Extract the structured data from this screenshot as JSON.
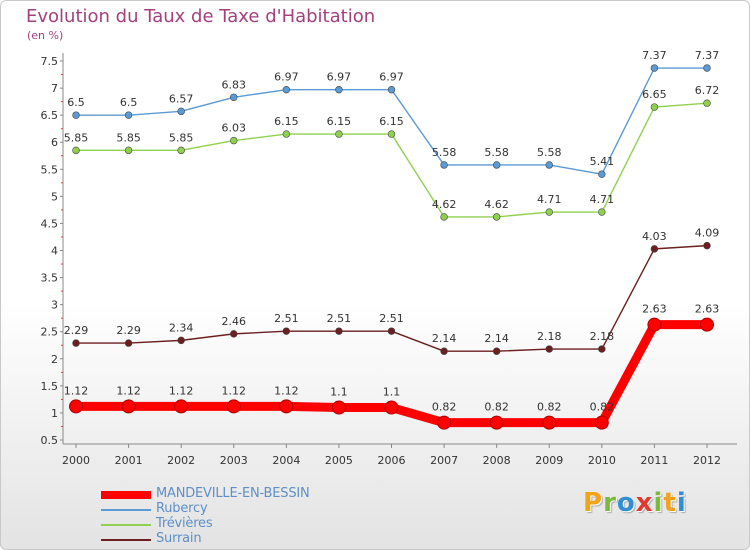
{
  "title": "Evolution du Taux de Taxe d'Habitation",
  "subtitle": "(en %)",
  "brand": {
    "letters": [
      "P",
      "r",
      "o",
      "x",
      "i",
      "t",
      "i"
    ],
    "colors": [
      "#f3a21b",
      "#7cb93f",
      "#2f8fd0",
      "#e03a2f",
      "#7cb93f",
      "#f3a21b",
      "#2f8fd0"
    ]
  },
  "chart_data": {
    "type": "line",
    "x": [
      "2000",
      "2001",
      "2002",
      "2003",
      "2004",
      "2005",
      "2006",
      "2007",
      "2008",
      "2009",
      "2010",
      "2011",
      "2012"
    ],
    "ylim": [
      0.5,
      7.5
    ],
    "yticks": [
      "0.5",
      "1",
      "1.5",
      "2",
      "2.5",
      "3",
      "3.5",
      "4",
      "4.5",
      "5",
      "5.5",
      "6",
      "6.5",
      "7",
      "7.5"
    ],
    "grid": false,
    "legend_position": "bottom-left",
    "series": [
      {
        "name": "MANDEVILLE-EN-BESSIN",
        "color": "#ff0000",
        "values": [
          1.12,
          1.12,
          1.12,
          1.12,
          1.12,
          1.1,
          1.1,
          0.82,
          0.82,
          0.82,
          0.82,
          2.63,
          2.63
        ],
        "labels": [
          "1.12",
          "1.12",
          "1.12",
          "1.12",
          "1.12",
          "1.1",
          "1.1",
          "0.82",
          "0.82",
          "0.82",
          "0.82",
          "2.63",
          "2.63"
        ]
      },
      {
        "name": "Rubercy",
        "color": "#5b9bd5",
        "values": [
          6.5,
          6.5,
          6.57,
          6.83,
          6.97,
          6.97,
          6.97,
          5.58,
          5.58,
          5.58,
          5.41,
          7.37,
          7.37
        ],
        "labels": [
          "6.5",
          "6.5",
          "6.57",
          "6.83",
          "6.97",
          "6.97",
          "6.97",
          "5.58",
          "5.58",
          "5.58",
          "5.41",
          "7.37",
          "7.37"
        ]
      },
      {
        "name": "Trévières",
        "color": "#8fd14f",
        "values": [
          5.85,
          5.85,
          5.85,
          6.03,
          6.15,
          6.15,
          6.15,
          4.62,
          4.62,
          4.71,
          4.71,
          6.65,
          6.72
        ],
        "labels": [
          "5.85",
          "5.85",
          "5.85",
          "6.03",
          "6.15",
          "6.15",
          "6.15",
          "4.62",
          "4.62",
          "4.71",
          "4.71",
          "6.65",
          "6.72"
        ]
      },
      {
        "name": "Surrain",
        "color": "#6b1f1f",
        "values": [
          2.29,
          2.29,
          2.34,
          2.46,
          2.51,
          2.51,
          2.51,
          2.14,
          2.14,
          2.18,
          2.18,
          4.03,
          4.09
        ],
        "labels": [
          "2.29",
          "2.29",
          "2.34",
          "2.46",
          "2.51",
          "2.51",
          "2.51",
          "2.14",
          "2.14",
          "2.18",
          "2.18",
          "4.03",
          "4.09"
        ]
      }
    ]
  }
}
